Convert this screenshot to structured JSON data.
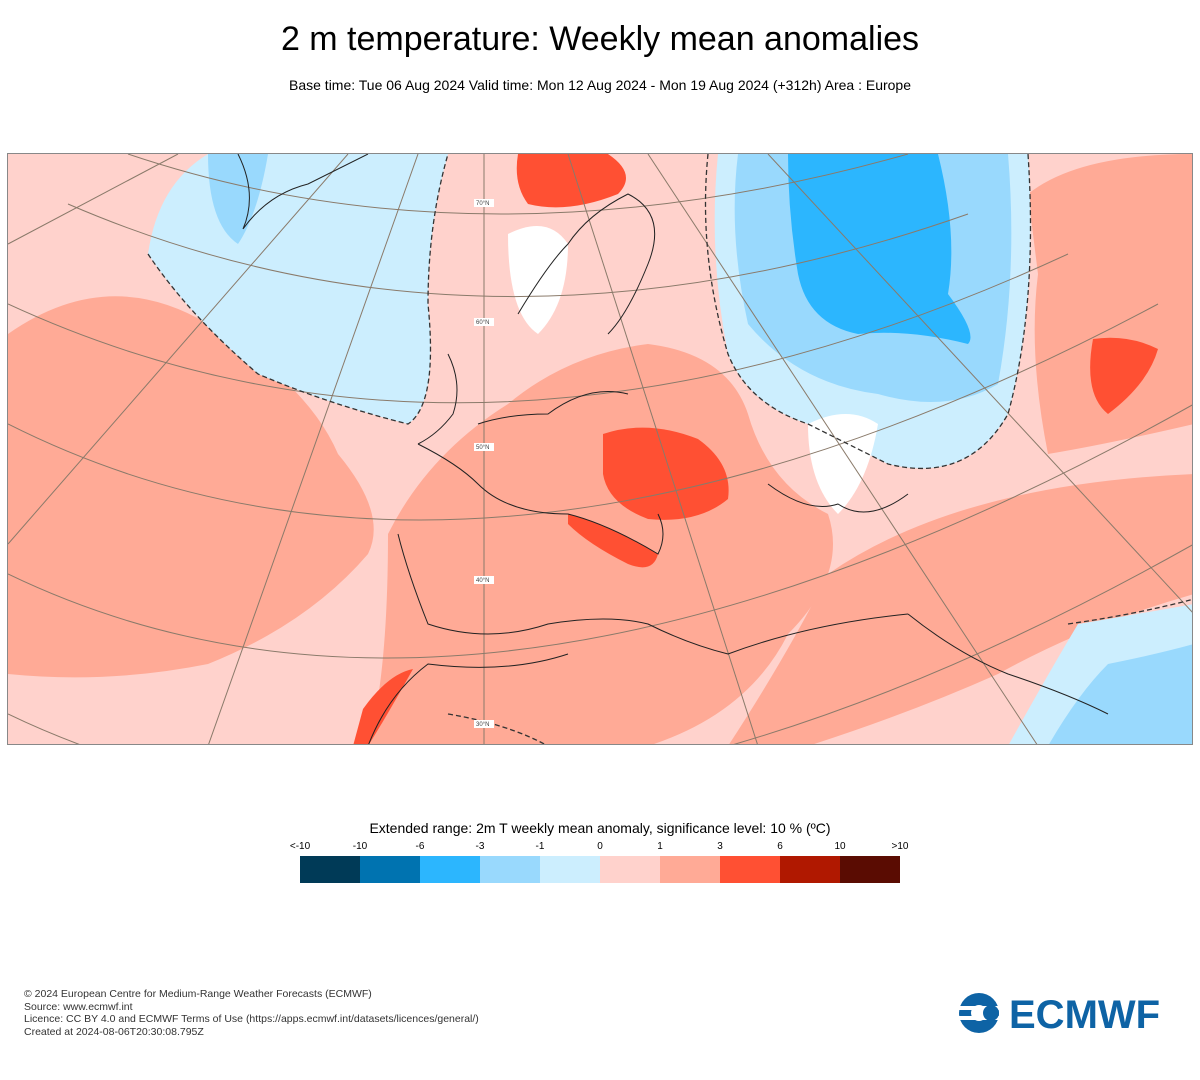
{
  "header": {
    "title": "2 m temperature: Weekly mean anomalies",
    "subtitle": "Base time: Tue 06 Aug 2024 Valid time: Mon 12 Aug 2024 - Mon 19 Aug 2024 (+312h) Area : Europe"
  },
  "map": {
    "area": "Europe",
    "latitude_labels": [
      "70°N",
      "60°N",
      "50°N",
      "40°N",
      "30°N"
    ]
  },
  "legend": {
    "title": "Extended range: 2m T weekly mean anomaly, significance level: 10 % (ºC)",
    "labels": [
      "<-10",
      "-10",
      "-6",
      "-3",
      "-1",
      "0",
      "1",
      "3",
      "6",
      "10",
      ">10"
    ],
    "colors": [
      "#003a57",
      "#0073b0",
      "#2cb6fe",
      "#99d9fd",
      "#cceefe",
      "#ffd2cc",
      "#ffaa96",
      "#ff5033",
      "#b01800",
      "#5a0c02"
    ]
  },
  "footer": {
    "lines": [
      "© 2024 European Centre for Medium-Range Weather Forecasts (ECMWF)",
      "Source: www.ecmwf.int",
      "Licence: CC BY 4.0 and ECMWF Terms of Use (https://apps.ecmwf.int/datasets/licences/general/)",
      "Created at 2024-08-06T20:30:08.795Z"
    ]
  },
  "logo": {
    "text": "ECMWF",
    "color": "#0e63a5"
  }
}
